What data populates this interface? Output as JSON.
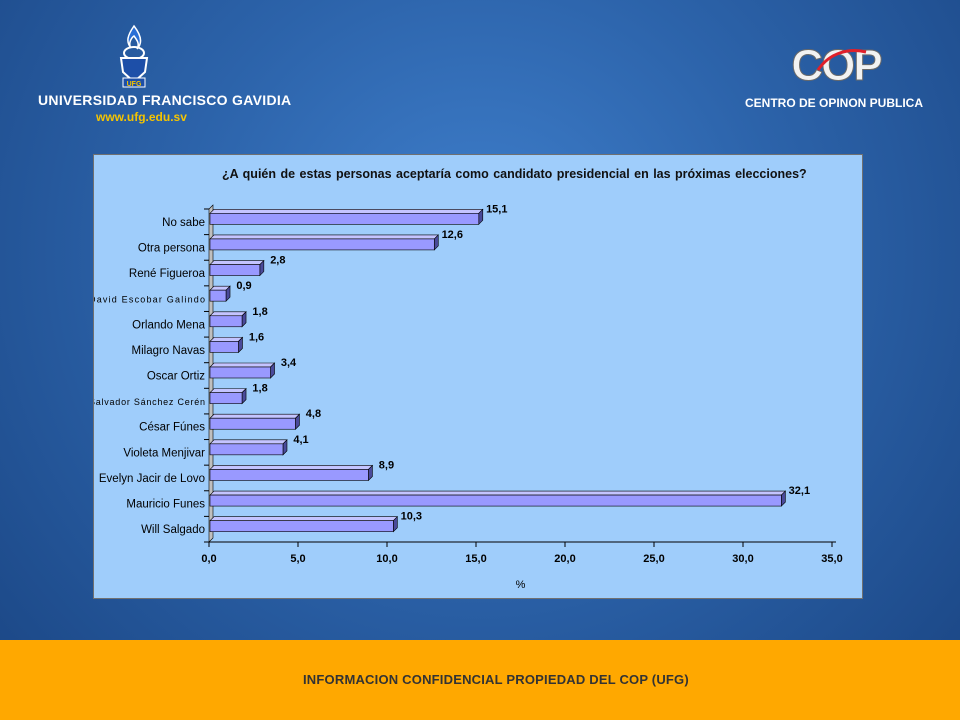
{
  "header": {
    "university_logo": {
      "name": "UNIVERSIDAD FRANCISCO GAVIDIA",
      "emblem_text": "UFG",
      "website": "www.ufg.edu.sv",
      "emblem_colors": {
        "torch": "#2a6fd6",
        "shield": "#1d4fa8",
        "text": "#f5c400"
      }
    },
    "cop_logo": {
      "mark_text": "COP",
      "subtitle": "CENTRO DE OPINON PUBLICA",
      "colors": {
        "letters": "#f2f2f2",
        "accent": "#e0202a"
      }
    }
  },
  "chart_data": {
    "type": "bar",
    "orientation": "horizontal",
    "title": "¿A quién de estas personas aceptaría como candidato presidencial en las próximas elecciones?",
    "categories": [
      "No sabe",
      "Otra persona",
      "René Figueroa",
      "David Escobar Galindo",
      "Orlando Mena",
      "Milagro Navas",
      "Oscar Ortiz",
      "Salvador Sánchez Cerén",
      "César Fúnes",
      "Violeta Menjivar",
      "Evelyn Jacir de Lovo",
      "Mauricio Funes",
      "Will Salgado"
    ],
    "values": [
      15.1,
      12.6,
      2.8,
      0.9,
      1.8,
      1.6,
      3.4,
      1.8,
      4.8,
      4.1,
      8.9,
      32.1,
      10.3
    ],
    "value_labels": [
      "15,1",
      "12,6",
      "2,8",
      "0,9",
      "1,8",
      "1,6",
      "3,4",
      "1,8",
      "4,8",
      "4,1",
      "8,9",
      "32,1",
      "10,3"
    ],
    "xlabel": "%",
    "ylabel": "",
    "xlim": [
      0,
      35
    ],
    "x_ticks": [
      "0,0",
      "5,0",
      "10,0",
      "15,0",
      "20,0",
      "25,0",
      "30,0",
      "35,0"
    ],
    "grid": false,
    "legend": "none",
    "colors": {
      "bar": "#9999ff",
      "bar_top": "#c4c4ff",
      "bar_side": "#4a4a9a",
      "background": "#9fcdfb"
    }
  },
  "footer": {
    "text": "INFORMACION CONFIDENCIAL PROPIEDAD DEL COP (UFG)",
    "color": "#ffa800"
  }
}
